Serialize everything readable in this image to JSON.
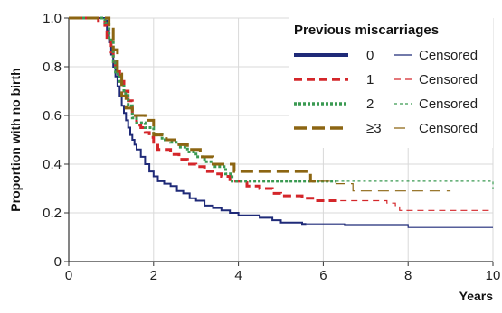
{
  "chart_data": {
    "type": "line",
    "title": "",
    "xlabel": "Years",
    "ylabel": "Proportion with no birth",
    "xlim": [
      0,
      10
    ],
    "ylim": [
      0,
      1.0
    ],
    "x_ticks": [
      "0",
      "2",
      "4",
      "6",
      "8",
      "10"
    ],
    "y_ticks": [
      "0",
      "0.2",
      "0.4",
      "0.6",
      "0.8",
      "1.0"
    ],
    "grid": true,
    "legend": {
      "title": "Previous miscarriages",
      "placement": "top-right",
      "censored_label": "Censored"
    },
    "series": [
      {
        "name": "0",
        "color": "#1f2a78",
        "style": "solid",
        "steps": [
          [
            0,
            1.0
          ],
          [
            0.85,
            0.99
          ],
          [
            0.9,
            0.95
          ],
          [
            0.95,
            0.9
          ],
          [
            1.0,
            0.85
          ],
          [
            1.05,
            0.8
          ],
          [
            1.1,
            0.76
          ],
          [
            1.15,
            0.72
          ],
          [
            1.2,
            0.68
          ],
          [
            1.25,
            0.64
          ],
          [
            1.3,
            0.61
          ],
          [
            1.35,
            0.58
          ],
          [
            1.4,
            0.55
          ],
          [
            1.45,
            0.52
          ],
          [
            1.5,
            0.5
          ],
          [
            1.55,
            0.48
          ],
          [
            1.6,
            0.46
          ],
          [
            1.7,
            0.43
          ],
          [
            1.8,
            0.4
          ],
          [
            1.9,
            0.37
          ],
          [
            2.0,
            0.35
          ],
          [
            2.1,
            0.33
          ],
          [
            2.25,
            0.32
          ],
          [
            2.4,
            0.31
          ],
          [
            2.55,
            0.29
          ],
          [
            2.7,
            0.28
          ],
          [
            2.85,
            0.26
          ],
          [
            3.0,
            0.25
          ],
          [
            3.2,
            0.23
          ],
          [
            3.4,
            0.22
          ],
          [
            3.6,
            0.21
          ],
          [
            3.8,
            0.2
          ],
          [
            4.0,
            0.19
          ],
          [
            4.5,
            0.18
          ],
          [
            4.8,
            0.17
          ],
          [
            5.0,
            0.16
          ],
          [
            5.5,
            0.155
          ],
          [
            6.5,
            0.152
          ],
          [
            8.0,
            0.14
          ],
          [
            10,
            0.14
          ]
        ],
        "solid_until": 5.6
      },
      {
        "name": "1",
        "color": "#d4262a",
        "style": "dashed",
        "steps": [
          [
            0,
            1.0
          ],
          [
            0.7,
            0.99
          ],
          [
            0.85,
            0.97
          ],
          [
            0.9,
            0.92
          ],
          [
            1.0,
            0.86
          ],
          [
            1.05,
            0.82
          ],
          [
            1.1,
            0.78
          ],
          [
            1.2,
            0.74
          ],
          [
            1.3,
            0.7
          ],
          [
            1.4,
            0.66
          ],
          [
            1.5,
            0.6
          ],
          [
            1.6,
            0.56
          ],
          [
            1.7,
            0.55
          ],
          [
            1.8,
            0.53
          ],
          [
            1.9,
            0.51
          ],
          [
            2.0,
            0.49
          ],
          [
            2.1,
            0.46
          ],
          [
            2.4,
            0.44
          ],
          [
            2.6,
            0.42
          ],
          [
            2.8,
            0.4
          ],
          [
            3.0,
            0.39
          ],
          [
            3.2,
            0.37
          ],
          [
            3.4,
            0.36
          ],
          [
            3.6,
            0.35
          ],
          [
            3.8,
            0.33
          ],
          [
            4.2,
            0.31
          ],
          [
            4.5,
            0.3
          ],
          [
            4.8,
            0.28
          ],
          [
            5.0,
            0.27
          ],
          [
            5.5,
            0.26
          ],
          [
            5.8,
            0.25
          ],
          [
            7.5,
            0.24
          ],
          [
            7.7,
            0.23
          ],
          [
            7.8,
            0.21
          ],
          [
            10,
            0.21
          ]
        ],
        "solid_until": 6.4
      },
      {
        "name": "2",
        "color": "#3a9a52",
        "style": "dotted",
        "steps": [
          [
            0,
            1.0
          ],
          [
            0.85,
            0.98
          ],
          [
            0.95,
            0.91
          ],
          [
            1.05,
            0.82
          ],
          [
            1.1,
            0.77
          ],
          [
            1.2,
            0.73
          ],
          [
            1.3,
            0.69
          ],
          [
            1.4,
            0.64
          ],
          [
            1.5,
            0.59
          ],
          [
            1.6,
            0.57
          ],
          [
            1.8,
            0.55
          ],
          [
            2.0,
            0.52
          ],
          [
            2.2,
            0.5
          ],
          [
            2.4,
            0.49
          ],
          [
            2.6,
            0.47
          ],
          [
            2.8,
            0.45
          ],
          [
            3.0,
            0.43
          ],
          [
            3.2,
            0.41
          ],
          [
            3.4,
            0.39
          ],
          [
            3.7,
            0.36
          ],
          [
            3.85,
            0.33
          ],
          [
            10,
            0.3
          ]
        ],
        "solid_until": 6.3
      },
      {
        "name": "≥3",
        "color": "#8c6512",
        "style": "longdash",
        "steps": [
          [
            0,
            1.0
          ],
          [
            0.95,
            0.96
          ],
          [
            1.05,
            0.87
          ],
          [
            1.15,
            0.77
          ],
          [
            1.25,
            0.68
          ],
          [
            1.35,
            0.63
          ],
          [
            1.5,
            0.6
          ],
          [
            1.8,
            0.58
          ],
          [
            2.0,
            0.52
          ],
          [
            2.3,
            0.5
          ],
          [
            2.6,
            0.48
          ],
          [
            2.8,
            0.46
          ],
          [
            3.1,
            0.43
          ],
          [
            3.4,
            0.4
          ],
          [
            3.9,
            0.37
          ],
          [
            5.7,
            0.33
          ],
          [
            6.3,
            0.32
          ],
          [
            6.7,
            0.29
          ],
          [
            9.0,
            0.29
          ]
        ],
        "solid_until": 5.9
      }
    ]
  }
}
